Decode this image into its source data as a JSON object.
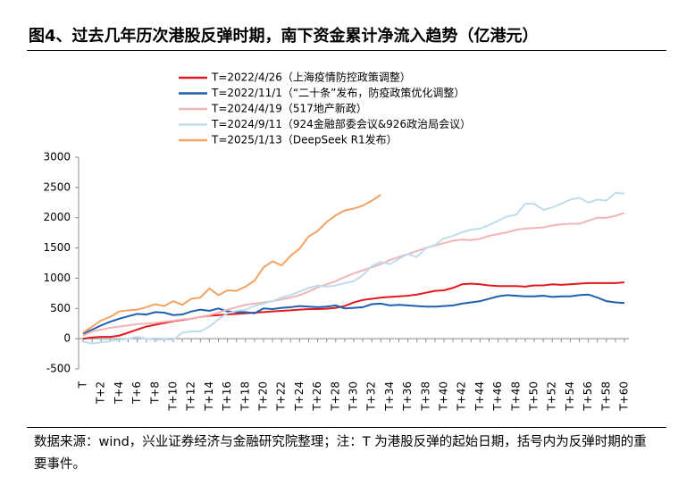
{
  "chart_data": {
    "type": "line",
    "title": "图4、过去几年历次港股反弹时期，南下资金累计净流入趋势（亿港元）",
    "source": "数据来源：wind，兴业证券经济与金融研究院整理；注：T 为港股反弹的起始日期，括号内为反弹时期的重要事件。",
    "categories": [
      "T",
      null,
      "T+2",
      null,
      "T+4",
      null,
      "T+6",
      null,
      "T+8",
      null,
      "T+10",
      null,
      "T+12",
      null,
      "T+14",
      null,
      "T+16",
      null,
      "T+18",
      null,
      "T+20",
      null,
      "T+22",
      null,
      "T+24",
      null,
      "T+26",
      null,
      "T+28",
      null,
      "T+30",
      null,
      "T+32",
      null,
      "T+34",
      null,
      "T+36",
      null,
      "T+38",
      null,
      "T+40",
      null,
      "T+42",
      null,
      "T+44",
      null,
      "T+46",
      null,
      "T+48",
      null,
      "T+50",
      null,
      "T+52",
      null,
      "T+54",
      null,
      "T+56",
      null,
      "T+58",
      null,
      "T+60"
    ],
    "ylim": [
      -500,
      3000
    ],
    "yticks": [
      -500,
      0,
      500,
      1000,
      1500,
      2000,
      2500,
      3000
    ],
    "series": [
      {
        "name": "T=2022/4/26（上海疫情防控政策调整）",
        "color": "#e3191f",
        "values": [
          0,
          20,
          30,
          30,
          50,
          100,
          150,
          200,
          230,
          260,
          290,
          310,
          330,
          360,
          380,
          390,
          400,
          410,
          420,
          430,
          440,
          450,
          460,
          470,
          480,
          490,
          490,
          495,
          510,
          540,
          600,
          640,
          660,
          680,
          690,
          700,
          710,
          730,
          760,
          790,
          800,
          840,
          900,
          910,
          900,
          880,
          870,
          870,
          870,
          860,
          880,
          880,
          900,
          890,
          900,
          910,
          920,
          920,
          920,
          920,
          930
        ]
      },
      {
        "name": "T=2022/11/1（“二十条”发布，防疫政策优化调整）",
        "color": "#1f5fae",
        "values": [
          80,
          150,
          220,
          280,
          330,
          370,
          410,
          400,
          440,
          430,
          390,
          400,
          450,
          480,
          460,
          500,
          450,
          440,
          440,
          420,
          500,
          490,
          510,
          520,
          540,
          530,
          520,
          530,
          550,
          500,
          510,
          520,
          570,
          580,
          550,
          560,
          550,
          540,
          530,
          530,
          540,
          550,
          580,
          600,
          620,
          660,
          700,
          720,
          710,
          700,
          700,
          710,
          690,
          700,
          700,
          720,
          730,
          680,
          620,
          600,
          590
        ]
      },
      {
        "name": "T=2024/4/19（517地产新政）",
        "color": "#f2b5b5",
        "values": [
          50,
          120,
          150,
          180,
          200,
          220,
          240,
          250,
          260,
          280,
          300,
          320,
          330,
          360,
          390,
          430,
          480,
          520,
          560,
          580,
          600,
          620,
          650,
          680,
          720,
          780,
          850,
          900,
          950,
          1020,
          1080,
          1130,
          1180,
          1230,
          1300,
          1350,
          1400,
          1450,
          1500,
          1540,
          1580,
          1620,
          1640,
          1630,
          1650,
          1700,
          1730,
          1760,
          1800,
          1820,
          1830,
          1840,
          1870,
          1890,
          1900,
          1900,
          1950,
          2000,
          2000,
          2030,
          2080
        ]
      },
      {
        "name": "T=2024/9/11（924金融部委会议&926政治局会议）",
        "color": "#bfdcec",
        "values": [
          -50,
          -80,
          -60,
          -40,
          -20,
          0,
          30,
          0,
          -20,
          -10,
          -20,
          100,
          120,
          120,
          200,
          320,
          420,
          460,
          480,
          540,
          580,
          620,
          680,
          720,
          780,
          840,
          880,
          860,
          880,
          920,
          950,
          1050,
          1200,
          1270,
          1230,
          1320,
          1400,
          1350,
          1500,
          1550,
          1660,
          1700,
          1760,
          1800,
          1820,
          1880,
          1950,
          2020,
          2050,
          2230,
          2230,
          2130,
          2170,
          2230,
          2300,
          2330,
          2250,
          2300,
          2280,
          2410,
          2400
        ]
      },
      {
        "name": "T=2025/1/13（DeepSeek R1发布）",
        "color": "#f4a261",
        "values": [
          100,
          200,
          300,
          360,
          450,
          470,
          480,
          520,
          570,
          540,
          620,
          560,
          660,
          680,
          830,
          720,
          800,
          790,
          860,
          960,
          1180,
          1280,
          1210,
          1370,
          1490,
          1690,
          1780,
          1930,
          2040,
          2120,
          2150,
          2200,
          2280,
          2380,
          null,
          null,
          null,
          null,
          null,
          null,
          null,
          null,
          null,
          null,
          null,
          null,
          null,
          null,
          null,
          null,
          null,
          null,
          null,
          null,
          null,
          null,
          null,
          null,
          null,
          null,
          null
        ]
      }
    ]
  }
}
